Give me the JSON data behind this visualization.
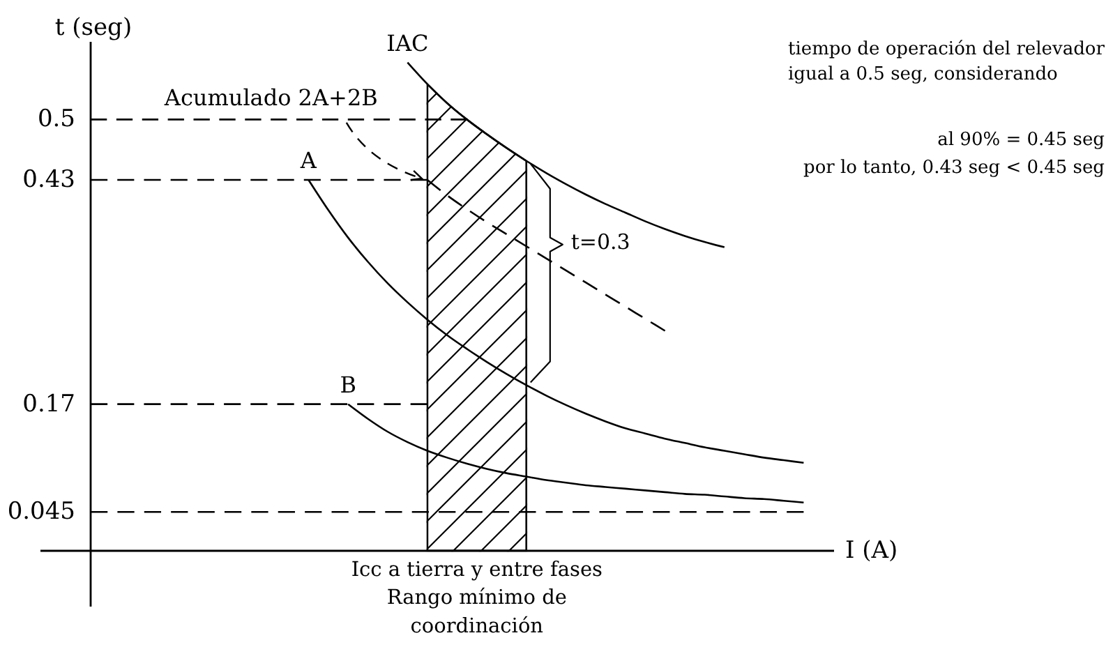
{
  "chart_data": {
    "type": "line",
    "xlabel": "I (A)",
    "ylabel": "t (seg)",
    "categories": [
      null,
      null,
      null,
      null,
      null,
      null,
      null,
      null,
      null,
      null,
      null,
      null,
      null,
      null,
      null,
      null,
      null,
      null,
      null,
      null,
      null,
      null,
      null,
      null,
      null,
      null,
      null,
      null,
      null,
      null,
      null,
      null,
      null,
      null,
      null,
      null,
      null
    ],
    "ylim": [
      0,
      0.59
    ],
    "yticks": [
      0.045,
      0.17,
      0.43,
      0.5
    ],
    "tick_labels": "y",
    "series": [
      {
        "name": "IAC",
        "color": "#000000",
        "values": [
          null,
          null,
          null,
          null,
          null,
          null,
          null,
          null,
          null,
          null,
          null,
          null,
          null,
          null,
          null,
          null,
          0.566,
          0.541,
          0.519,
          0.5,
          0.483,
          0.467,
          0.452,
          0.438,
          0.425,
          0.413,
          0.402,
          0.392,
          0.382,
          0.373,
          0.365,
          0.358,
          0.352,
          null,
          null,
          null,
          null
        ]
      },
      {
        "name": "Acumulado 2A+2B",
        "color": "#000000",
        "line_style": "dashed",
        "values": [
          null,
          null,
          null,
          null,
          null,
          null,
          null,
          null,
          null,
          null,
          null,
          null,
          null,
          null,
          null,
          null,
          null,
          0.43,
          0.412,
          0.396,
          0.381,
          0.367,
          0.353,
          0.339,
          0.325,
          0.311,
          0.297,
          0.283,
          0.269,
          0.255,
          null,
          null,
          null,
          null,
          null,
          null,
          null
        ]
      },
      {
        "name": "A",
        "color": "#000000",
        "values": [
          null,
          null,
          null,
          null,
          null,
          null,
          null,
          null,
          null,
          null,
          null,
          0.43,
          0.395,
          0.363,
          0.335,
          0.31,
          0.288,
          0.268,
          0.25,
          0.234,
          0.219,
          0.205,
          0.192,
          0.18,
          0.169,
          0.159,
          0.15,
          0.142,
          0.136,
          0.13,
          0.125,
          0.12,
          0.116,
          0.112,
          0.108,
          0.105,
          0.102
        ]
      },
      {
        "name": "B",
        "color": "#000000",
        "values": [
          null,
          null,
          null,
          null,
          null,
          null,
          null,
          null,
          null,
          null,
          null,
          null,
          null,
          0.17,
          0.153,
          0.138,
          0.126,
          0.116,
          0.108,
          0.101,
          0.095,
          0.09,
          0.086,
          0.082,
          0.079,
          0.076,
          0.074,
          0.072,
          0.07,
          0.068,
          0.066,
          0.065,
          0.063,
          0.061,
          0.06,
          0.058,
          0.056
        ]
      },
      {
        "type": "area",
        "name": "Icc a tierra y entre fases",
        "color": "#000000",
        "values": [
          null,
          null,
          null,
          null,
          null,
          null,
          null,
          null,
          null,
          null,
          null,
          null,
          null,
          null,
          null,
          null,
          null,
          0.541,
          0.519,
          0.5,
          0.483,
          0.467,
          0.452,
          null,
          null,
          null,
          null,
          null,
          null,
          null,
          null,
          null,
          null,
          null,
          null,
          null,
          null
        ]
      },
      {
        "color": "#000000",
        "line_style": "dashed",
        "values": [
          0.5,
          0.5,
          0.5,
          0.5,
          0.5,
          0.5,
          0.5,
          0.5,
          0.5,
          0.5,
          0.5,
          0.5,
          0.5,
          0.5,
          0.5,
          0.5,
          0.5,
          0.5,
          0.5,
          0.5,
          null,
          null,
          null,
          null,
          null,
          null,
          null,
          null,
          null,
          null,
          null,
          null,
          null,
          null,
          null,
          null,
          null
        ]
      },
      {
        "color": "#000000",
        "line_style": "dashed",
        "values": [
          0.43,
          0.43,
          0.43,
          0.43,
          0.43,
          0.43,
          0.43,
          0.43,
          0.43,
          0.43,
          0.43,
          0.43,
          0.43,
          0.43,
          0.43,
          0.43,
          0.43,
          0.43,
          null,
          null,
          null,
          null,
          null,
          null,
          null,
          null,
          null,
          null,
          null,
          null,
          null,
          null,
          null,
          null,
          null,
          null,
          null
        ]
      },
      {
        "color": "#000000",
        "line_style": "dashed",
        "values": [
          0.17,
          0.17,
          0.17,
          0.17,
          0.17,
          0.17,
          0.17,
          0.17,
          0.17,
          0.17,
          0.17,
          0.17,
          0.17,
          0.17,
          0.17,
          0.17,
          0.17,
          0.17,
          null,
          null,
          null,
          null,
          null,
          null,
          null,
          null,
          null,
          null,
          null,
          null,
          null,
          null,
          null,
          null,
          null,
          null,
          null
        ]
      },
      {
        "color": "#000000",
        "line_style": "dashed",
        "values": [
          0.045,
          0.045,
          0.045,
          0.045,
          0.045,
          0.045,
          0.045,
          0.045,
          0.045,
          0.045,
          0.045,
          0.045,
          0.045,
          0.045,
          0.045,
          0.045,
          0.045,
          0.045,
          0.045,
          0.045,
          0.045,
          0.045,
          0.045,
          0.045,
          0.045,
          0.045,
          0.045,
          0.045,
          0.045,
          0.045,
          0.045,
          0.045,
          0.045,
          0.045,
          0.045,
          0.045,
          0.045
        ]
      }
    ],
    "annotations": [
      "tiempo de operación del relevador igual a 0.5 seg, considerando",
      "al 90% = 0.45 seg",
      "por lo tanto, 0.43 seg < 0.45 seg",
      "t=0.3",
      "Rango mínimo de coordinación"
    ]
  }
}
